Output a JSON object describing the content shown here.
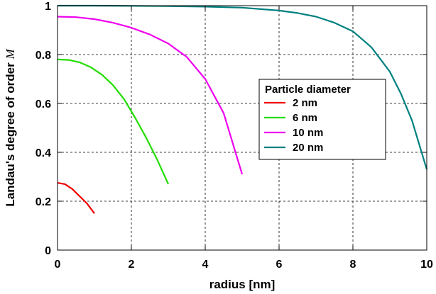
{
  "chart_data": {
    "type": "line",
    "title": "",
    "xlabel": "radius [nm]",
    "ylabel": {
      "prefix": "Landau's degree of order ",
      "symbol": "M"
    },
    "xlim": [
      0,
      10
    ],
    "ylim": [
      0,
      1
    ],
    "xticks": [
      "0",
      "2",
      "4",
      "6",
      "8",
      "10"
    ],
    "yticks": [
      "0",
      "0.2",
      "0.4",
      "0.6",
      "0.8",
      "1"
    ],
    "grid": true,
    "legend": {
      "title": "Particle diameter",
      "position": "center-right"
    },
    "series": [
      {
        "name": "2 nm",
        "color": "#ee0000",
        "x": [
          0,
          0.2,
          0.4,
          0.6,
          0.8,
          1.0
        ],
        "y": [
          0.275,
          0.27,
          0.25,
          0.22,
          0.19,
          0.15
        ]
      },
      {
        "name": "6 nm",
        "color": "#22dd00",
        "x": [
          0,
          0.3,
          0.6,
          0.9,
          1.2,
          1.5,
          1.8,
          2.1,
          2.4,
          2.7,
          3.0
        ],
        "y": [
          0.78,
          0.778,
          0.768,
          0.748,
          0.718,
          0.675,
          0.618,
          0.542,
          0.46,
          0.37,
          0.27
        ]
      },
      {
        "name": "10 nm",
        "color": "#ee00ee",
        "x": [
          0,
          0.5,
          1.0,
          1.5,
          2.0,
          2.5,
          3.0,
          3.5,
          4.0,
          4.5,
          5.0
        ],
        "y": [
          0.955,
          0.953,
          0.945,
          0.93,
          0.91,
          0.882,
          0.845,
          0.79,
          0.7,
          0.56,
          0.31
        ]
      },
      {
        "name": "20 nm",
        "color": "#008080",
        "x": [
          0,
          1,
          2,
          3,
          4,
          5,
          6,
          6.5,
          7,
          7.5,
          8,
          8.5,
          9,
          9.3,
          9.6,
          10.0
        ],
        "y": [
          1.0,
          1.0,
          0.999,
          0.998,
          0.996,
          0.992,
          0.98,
          0.97,
          0.955,
          0.93,
          0.895,
          0.83,
          0.73,
          0.64,
          0.53,
          0.33
        ]
      }
    ]
  }
}
